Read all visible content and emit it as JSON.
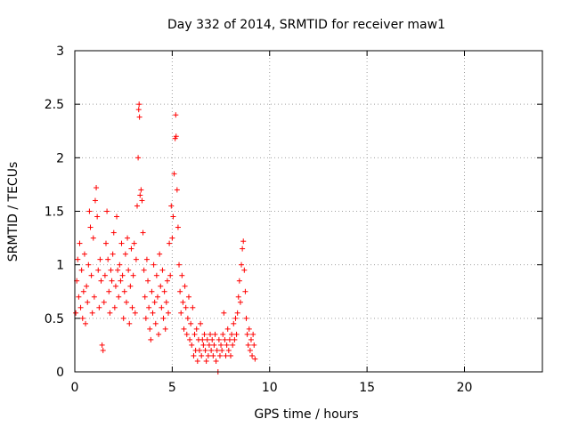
{
  "chart_data": {
    "type": "scatter",
    "title": "Day 332 of 2014, SRMTID for receiver maw1",
    "xlabel": "GPS time / hours",
    "ylabel": "SRMTID / TECUs",
    "xlim": [
      0,
      24
    ],
    "ylim": [
      0,
      3
    ],
    "xticks": [
      0,
      5,
      10,
      15,
      20
    ],
    "yticks": [
      0,
      0.5,
      1,
      1.5,
      2,
      2.5,
      3
    ],
    "xtick_labels": [
      "0",
      "5",
      "10",
      "15",
      "20"
    ],
    "ytick_labels": [
      "0",
      "0.5",
      "1",
      "1.5",
      "2",
      "2.5",
      "3"
    ],
    "grid": true,
    "marker": "+",
    "color": "#ff0000",
    "series": [
      {
        "name": "maw1",
        "points": [
          [
            0.05,
            0.55
          ],
          [
            0.1,
            0.85
          ],
          [
            0.15,
            1.05
          ],
          [
            0.2,
            0.7
          ],
          [
            0.25,
            1.2
          ],
          [
            0.3,
            0.6
          ],
          [
            0.35,
            0.95
          ],
          [
            0.4,
            0.5
          ],
          [
            0.45,
            0.75
          ],
          [
            0.5,
            1.1
          ],
          [
            0.55,
            0.45
          ],
          [
            0.6,
            0.8
          ],
          [
            0.65,
            0.65
          ],
          [
            0.7,
            1.0
          ],
          [
            0.75,
            1.5
          ],
          [
            0.8,
            1.35
          ],
          [
            0.85,
            0.9
          ],
          [
            0.9,
            0.55
          ],
          [
            0.95,
            1.25
          ],
          [
            1.0,
            0.7
          ],
          [
            1.05,
            1.6
          ],
          [
            1.1,
            1.72
          ],
          [
            1.15,
            1.45
          ],
          [
            1.2,
            0.95
          ],
          [
            1.25,
            0.6
          ],
          [
            1.3,
            1.05
          ],
          [
            1.35,
            0.85
          ],
          [
            1.4,
            0.25
          ],
          [
            1.45,
            0.2
          ],
          [
            1.5,
            0.65
          ],
          [
            1.55,
            0.9
          ],
          [
            1.6,
            1.2
          ],
          [
            1.65,
            1.5
          ],
          [
            1.7,
            1.05
          ],
          [
            1.75,
            0.75
          ],
          [
            1.8,
            0.55
          ],
          [
            1.85,
            0.95
          ],
          [
            1.9,
            0.85
          ],
          [
            1.95,
            1.1
          ],
          [
            2.0,
            1.3
          ],
          [
            2.05,
            0.6
          ],
          [
            2.1,
            0.8
          ],
          [
            2.15,
            1.45
          ],
          [
            2.2,
            0.95
          ],
          [
            2.25,
            0.7
          ],
          [
            2.3,
            1.0
          ],
          [
            2.35,
            0.85
          ],
          [
            2.4,
            1.2
          ],
          [
            2.45,
            0.9
          ],
          [
            2.5,
            0.5
          ],
          [
            2.55,
            0.75
          ],
          [
            2.6,
            1.1
          ],
          [
            2.65,
            0.65
          ],
          [
            2.7,
            1.25
          ],
          [
            2.75,
            0.95
          ],
          [
            2.8,
            0.45
          ],
          [
            2.85,
            0.8
          ],
          [
            2.9,
            1.15
          ],
          [
            2.95,
            0.6
          ],
          [
            3.0,
            0.9
          ],
          [
            3.05,
            1.2
          ],
          [
            3.1,
            0.55
          ],
          [
            3.15,
            1.05
          ],
          [
            3.2,
            1.55
          ],
          [
            3.25,
            2.0
          ],
          [
            3.28,
            2.45
          ],
          [
            3.3,
            2.5
          ],
          [
            3.32,
            2.38
          ],
          [
            3.35,
            1.65
          ],
          [
            3.4,
            1.7
          ],
          [
            3.45,
            1.6
          ],
          [
            3.5,
            1.3
          ],
          [
            3.55,
            0.95
          ],
          [
            3.6,
            0.7
          ],
          [
            3.65,
            0.5
          ],
          [
            3.7,
            1.05
          ],
          [
            3.75,
            0.85
          ],
          [
            3.8,
            0.6
          ],
          [
            3.85,
            0.4
          ],
          [
            3.9,
            0.3
          ],
          [
            3.95,
            0.75
          ],
          [
            4.0,
            0.55
          ],
          [
            4.05,
            1.0
          ],
          [
            4.1,
            0.65
          ],
          [
            4.15,
            0.45
          ],
          [
            4.2,
            0.9
          ],
          [
            4.25,
            0.7
          ],
          [
            4.3,
            0.35
          ],
          [
            4.35,
            1.1
          ],
          [
            4.4,
            0.8
          ],
          [
            4.45,
            0.6
          ],
          [
            4.5,
            0.95
          ],
          [
            4.55,
            0.5
          ],
          [
            4.6,
            0.75
          ],
          [
            4.65,
            0.4
          ],
          [
            4.7,
            0.65
          ],
          [
            4.75,
            0.85
          ],
          [
            4.8,
            0.55
          ],
          [
            4.85,
            1.2
          ],
          [
            4.9,
            0.9
          ],
          [
            4.95,
            1.55
          ],
          [
            5.0,
            1.25
          ],
          [
            5.05,
            1.45
          ],
          [
            5.1,
            1.85
          ],
          [
            5.15,
            2.18
          ],
          [
            5.18,
            2.4
          ],
          [
            5.2,
            2.2
          ],
          [
            5.25,
            1.7
          ],
          [
            5.3,
            1.35
          ],
          [
            5.35,
            1.0
          ],
          [
            5.4,
            0.75
          ],
          [
            5.45,
            0.55
          ],
          [
            5.5,
            0.9
          ],
          [
            5.55,
            0.65
          ],
          [
            5.6,
            0.4
          ],
          [
            5.65,
            0.8
          ],
          [
            5.7,
            0.6
          ],
          [
            5.75,
            0.35
          ],
          [
            5.8,
            0.5
          ],
          [
            5.85,
            0.7
          ],
          [
            5.9,
            0.3
          ],
          [
            5.95,
            0.45
          ],
          [
            6.0,
            0.25
          ],
          [
            6.05,
            0.6
          ],
          [
            6.1,
            0.15
          ],
          [
            6.15,
            0.35
          ],
          [
            6.2,
            0.2
          ],
          [
            6.25,
            0.4
          ],
          [
            6.3,
            0.1
          ],
          [
            6.35,
            0.3
          ],
          [
            6.4,
            0.2
          ],
          [
            6.45,
            0.45
          ],
          [
            6.5,
            0.15
          ],
          [
            6.55,
            0.3
          ],
          [
            6.6,
            0.25
          ],
          [
            6.65,
            0.35
          ],
          [
            6.7,
            0.2
          ],
          [
            6.75,
            0.1
          ],
          [
            6.8,
            0.3
          ],
          [
            6.85,
            0.15
          ],
          [
            6.9,
            0.25
          ],
          [
            6.95,
            0.35
          ],
          [
            7.0,
            0.2
          ],
          [
            7.05,
            0.3
          ],
          [
            7.1,
            0.15
          ],
          [
            7.15,
            0.25
          ],
          [
            7.2,
            0.35
          ],
          [
            7.25,
            0.1
          ],
          [
            7.3,
            0.2
          ],
          [
            7.35,
            0.0
          ],
          [
            7.4,
            0.3
          ],
          [
            7.45,
            0.15
          ],
          [
            7.5,
            0.25
          ],
          [
            7.55,
            0.2
          ],
          [
            7.6,
            0.35
          ],
          [
            7.65,
            0.55
          ],
          [
            7.7,
            0.3
          ],
          [
            7.75,
            0.15
          ],
          [
            7.8,
            0.25
          ],
          [
            7.85,
            0.4
          ],
          [
            7.9,
            0.2
          ],
          [
            7.95,
            0.3
          ],
          [
            8.0,
            0.15
          ],
          [
            8.05,
            0.35
          ],
          [
            8.1,
            0.25
          ],
          [
            8.15,
            0.45
          ],
          [
            8.2,
            0.3
          ],
          [
            8.25,
            0.5
          ],
          [
            8.3,
            0.35
          ],
          [
            8.35,
            0.55
          ],
          [
            8.4,
            0.7
          ],
          [
            8.45,
            0.85
          ],
          [
            8.5,
            0.65
          ],
          [
            8.55,
            1.0
          ],
          [
            8.6,
            1.15
          ],
          [
            8.65,
            1.22
          ],
          [
            8.7,
            0.95
          ],
          [
            8.75,
            0.75
          ],
          [
            8.8,
            0.5
          ],
          [
            8.85,
            0.35
          ],
          [
            8.9,
            0.25
          ],
          [
            8.95,
            0.4
          ],
          [
            9.0,
            0.2
          ],
          [
            9.05,
            0.3
          ],
          [
            9.1,
            0.15
          ],
          [
            9.15,
            0.35
          ],
          [
            9.2,
            0.25
          ],
          [
            9.25,
            0.12
          ]
        ]
      }
    ]
  }
}
